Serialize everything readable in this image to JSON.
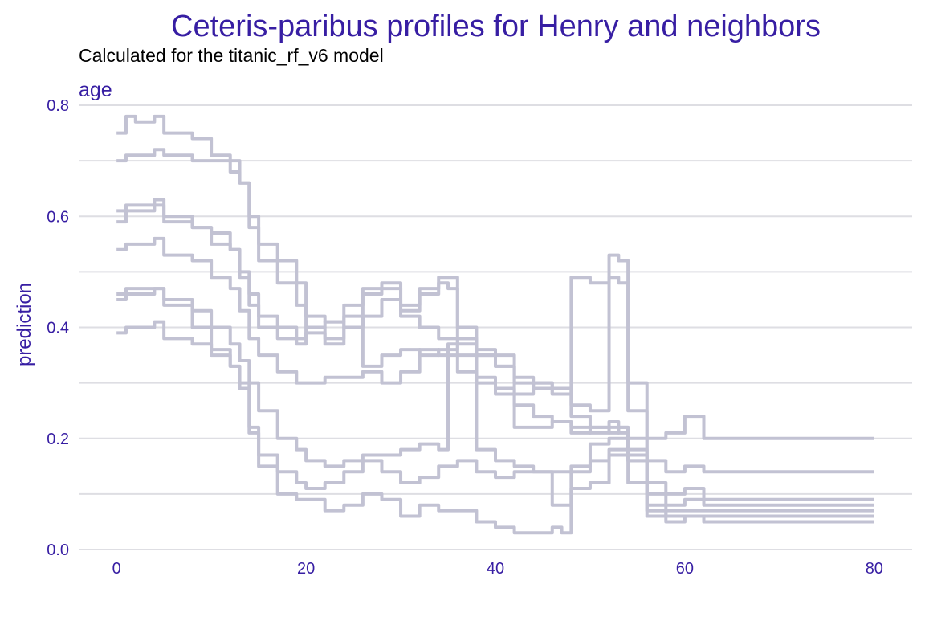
{
  "chart_data": {
    "type": "line",
    "title": "Ceteris-paribus profiles for Henry and neighbors",
    "subtitle": "Calculated for the titanic_rf_v6 model",
    "facet": "age",
    "xlabel": "",
    "ylabel": "prediction",
    "xlim": [
      -4,
      84
    ],
    "ylim": [
      0,
      0.8
    ],
    "x_ticks": [
      0,
      20,
      40,
      60,
      80
    ],
    "y_ticks": [
      0.0,
      0.2,
      0.4,
      0.6,
      0.8
    ],
    "y_tick_labels": [
      "0.0",
      "0.2",
      "0.4",
      "0.6",
      "0.8"
    ],
    "grid": "horizontal",
    "line_color": "#c2c2d3",
    "text_color": "#371ea3",
    "series": [
      {
        "x": [
          0,
          1,
          2,
          3,
          4,
          5,
          8,
          10,
          12,
          13,
          14,
          15,
          17,
          19,
          20,
          22,
          24,
          26,
          28,
          30,
          32,
          34,
          35,
          36,
          38,
          40,
          42,
          44,
          46,
          48,
          50,
          52,
          53,
          54,
          56,
          58,
          60,
          62,
          65,
          70,
          80
        ],
        "y": [
          0.75,
          0.78,
          0.77,
          0.77,
          0.78,
          0.75,
          0.74,
          0.71,
          0.7,
          0.66,
          0.6,
          0.55,
          0.52,
          0.48,
          0.42,
          0.41,
          0.4,
          0.42,
          0.45,
          0.43,
          0.47,
          0.49,
          0.49,
          0.4,
          0.36,
          0.35,
          0.3,
          0.3,
          0.29,
          0.24,
          0.22,
          0.21,
          0.22,
          0.2,
          0.2,
          0.21,
          0.24,
          0.2,
          0.2,
          0.2,
          0.2
        ]
      },
      {
        "x": [
          0,
          1,
          2,
          4,
          5,
          8,
          10,
          12,
          13,
          14,
          15,
          17,
          19,
          20,
          22,
          24,
          26,
          28,
          30,
          32,
          34,
          35,
          36,
          38,
          40,
          42,
          44,
          46,
          48,
          50,
          52,
          53,
          54,
          56,
          58,
          60,
          62,
          65,
          70,
          80
        ],
        "y": [
          0.7,
          0.71,
          0.71,
          0.72,
          0.71,
          0.7,
          0.7,
          0.68,
          0.66,
          0.58,
          0.52,
          0.48,
          0.44,
          0.4,
          0.38,
          0.4,
          0.46,
          0.48,
          0.44,
          0.46,
          0.48,
          0.47,
          0.38,
          0.35,
          0.33,
          0.31,
          0.29,
          0.28,
          0.49,
          0.48,
          0.49,
          0.48,
          0.25,
          0.16,
          0.14,
          0.15,
          0.14,
          0.14,
          0.14,
          0.14
        ]
      },
      {
        "x": [
          0,
          1,
          2,
          4,
          5,
          8,
          10,
          12,
          13,
          14,
          15,
          17,
          19,
          20,
          22,
          24,
          26,
          28,
          30,
          32,
          34,
          36,
          38,
          40,
          42,
          44,
          46,
          48,
          50,
          52,
          53,
          54,
          56,
          58,
          60,
          62,
          65,
          70,
          80
        ],
        "y": [
          0.61,
          0.62,
          0.62,
          0.63,
          0.6,
          0.58,
          0.55,
          0.54,
          0.5,
          0.46,
          0.42,
          0.4,
          0.38,
          0.4,
          0.41,
          0.44,
          0.47,
          0.47,
          0.42,
          0.4,
          0.38,
          0.37,
          0.35,
          0.33,
          0.28,
          0.3,
          0.28,
          0.26,
          0.25,
          0.53,
          0.52,
          0.3,
          0.12,
          0.1,
          0.11,
          0.09,
          0.09,
          0.09,
          0.09
        ]
      },
      {
        "x": [
          0,
          1,
          2,
          4,
          5,
          8,
          10,
          12,
          13,
          14,
          15,
          17,
          19,
          20,
          22,
          24,
          26,
          28,
          30,
          32,
          34,
          36,
          38,
          40,
          42,
          44,
          46,
          48,
          50,
          52,
          53,
          54,
          56,
          58,
          60,
          62,
          65,
          70,
          80
        ],
        "y": [
          0.59,
          0.61,
          0.61,
          0.62,
          0.59,
          0.58,
          0.57,
          0.54,
          0.49,
          0.44,
          0.4,
          0.38,
          0.37,
          0.39,
          0.37,
          0.42,
          0.33,
          0.35,
          0.36,
          0.35,
          0.36,
          0.38,
          0.3,
          0.28,
          0.22,
          0.22,
          0.23,
          0.21,
          0.22,
          0.23,
          0.21,
          0.18,
          0.1,
          0.08,
          0.09,
          0.08,
          0.08,
          0.08,
          0.08
        ]
      },
      {
        "x": [
          0,
          1,
          2,
          4,
          5,
          8,
          10,
          12,
          13,
          14,
          15,
          17,
          19,
          20,
          22,
          24,
          26,
          28,
          30,
          32,
          34,
          36,
          38,
          40,
          42,
          44,
          46,
          48,
          50,
          52,
          54,
          56,
          58,
          60,
          62,
          65,
          70,
          80
        ],
        "y": [
          0.54,
          0.55,
          0.55,
          0.56,
          0.53,
          0.52,
          0.49,
          0.47,
          0.43,
          0.38,
          0.35,
          0.32,
          0.3,
          0.3,
          0.31,
          0.31,
          0.32,
          0.3,
          0.32,
          0.36,
          0.35,
          0.32,
          0.31,
          0.29,
          0.26,
          0.24,
          0.23,
          0.22,
          0.21,
          0.22,
          0.16,
          0.08,
          0.07,
          0.07,
          0.07,
          0.07,
          0.07,
          0.07
        ]
      },
      {
        "x": [
          0,
          1,
          2,
          4,
          5,
          8,
          10,
          12,
          13,
          14,
          15,
          17,
          19,
          20,
          22,
          24,
          26,
          28,
          30,
          32,
          34,
          35,
          36,
          38,
          40,
          42,
          44,
          46,
          48,
          50,
          52,
          54,
          56,
          58,
          60,
          62,
          65,
          70,
          80
        ],
        "y": [
          0.45,
          0.46,
          0.46,
          0.47,
          0.45,
          0.43,
          0.4,
          0.37,
          0.34,
          0.3,
          0.25,
          0.2,
          0.18,
          0.16,
          0.15,
          0.16,
          0.17,
          0.17,
          0.18,
          0.19,
          0.18,
          0.37,
          0.35,
          0.18,
          0.16,
          0.15,
          0.14,
          0.14,
          0.15,
          0.19,
          0.2,
          0.17,
          0.07,
          0.06,
          0.06,
          0.06,
          0.06,
          0.06,
          0.06
        ]
      },
      {
        "x": [
          0,
          1,
          2,
          4,
          5,
          8,
          10,
          12,
          13,
          14,
          15,
          17,
          19,
          20,
          22,
          24,
          26,
          28,
          30,
          32,
          34,
          36,
          38,
          40,
          42,
          44,
          46,
          48,
          50,
          52,
          54,
          56,
          58,
          60,
          62,
          65,
          70,
          80
        ],
        "y": [
          0.46,
          0.47,
          0.47,
          0.47,
          0.44,
          0.4,
          0.36,
          0.33,
          0.3,
          0.22,
          0.17,
          0.14,
          0.12,
          0.11,
          0.12,
          0.14,
          0.16,
          0.14,
          0.12,
          0.13,
          0.15,
          0.16,
          0.14,
          0.13,
          0.14,
          0.14,
          0.08,
          0.11,
          0.12,
          0.17,
          0.12,
          0.06,
          0.05,
          0.06,
          0.05,
          0.05,
          0.05,
          0.05
        ]
      },
      {
        "x": [
          0,
          1,
          2,
          4,
          5,
          8,
          10,
          12,
          13,
          14,
          15,
          17,
          19,
          20,
          22,
          24,
          26,
          28,
          30,
          32,
          34,
          35,
          36,
          38,
          40,
          42,
          44,
          46,
          47,
          48,
          50,
          52,
          54,
          56,
          58,
          60,
          62,
          65,
          70,
          80
        ],
        "y": [
          0.39,
          0.4,
          0.4,
          0.41,
          0.38,
          0.37,
          0.35,
          0.33,
          0.29,
          0.21,
          0.15,
          0.1,
          0.09,
          0.09,
          0.07,
          0.08,
          0.1,
          0.09,
          0.06,
          0.08,
          0.07,
          0.07,
          0.07,
          0.05,
          0.04,
          0.03,
          0.03,
          0.04,
          0.03,
          0.14,
          0.16,
          0.18,
          0.16,
          0.07,
          0.06,
          0.06,
          0.05,
          0.05,
          0.05,
          0.05
        ]
      }
    ]
  }
}
